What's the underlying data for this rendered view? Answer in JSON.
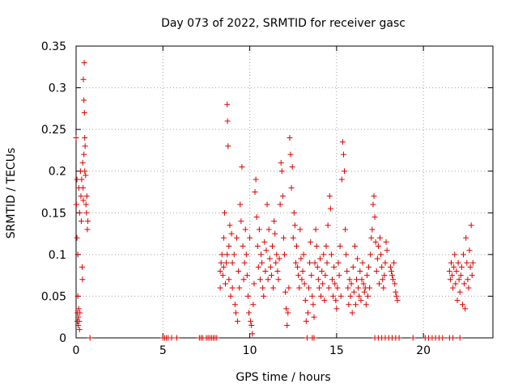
{
  "chart_data": {
    "type": "scatter",
    "title": "Day 073 of 2022, SRMTID for receiver gasc",
    "xlabel": "GPS time / hours",
    "ylabel": "SRMTID / TECUs",
    "xlim": [
      0,
      24
    ],
    "ylim": [
      0,
      0.35
    ],
    "xticks": [
      0,
      5,
      10,
      15,
      20
    ],
    "yticks": [
      0,
      0.05,
      0.1,
      0.15,
      0.2,
      0.25,
      0.3,
      0.35
    ],
    "xtick_labels": [
      "0",
      "5",
      "10",
      "15",
      "20"
    ],
    "ytick_labels": [
      "0",
      "0.05",
      "0.1",
      "0.15",
      "0.2",
      "0.25",
      "0.3",
      "0.35"
    ],
    "grid": true,
    "marker": "+",
    "color": "#dd0000",
    "series": [
      {
        "name": "SRMTID",
        "points": [
          [
            0.0,
            0.24
          ],
          [
            0.02,
            0.16
          ],
          [
            0.05,
            0.19
          ],
          [
            0.05,
            0.12
          ],
          [
            0.07,
            0.02
          ],
          [
            0.08,
            0.03
          ],
          [
            0.1,
            0.05
          ],
          [
            0.1,
            0.1
          ],
          [
            0.12,
            0.015
          ],
          [
            0.13,
            0.025
          ],
          [
            0.15,
            0.035
          ],
          [
            0.16,
            0.18
          ],
          [
            0.18,
            0.02
          ],
          [
            0.2,
            0.01
          ],
          [
            0.2,
            0.15
          ],
          [
            0.22,
            0.03
          ],
          [
            0.25,
            0.2
          ],
          [
            0.28,
            0.17
          ],
          [
            0.3,
            0.14
          ],
          [
            0.32,
            0.19
          ],
          [
            0.35,
            0.085
          ],
          [
            0.37,
            0.07
          ],
          [
            0.38,
            0.21
          ],
          [
            0.4,
            0.18
          ],
          [
            0.42,
            0.165
          ],
          [
            0.42,
            0.31
          ],
          [
            0.45,
            0.285
          ],
          [
            0.45,
            0.22
          ],
          [
            0.47,
            0.33
          ],
          [
            0.48,
            0.27
          ],
          [
            0.5,
            0.24
          ],
          [
            0.5,
            0.2
          ],
          [
            0.52,
            0.23
          ],
          [
            0.55,
            0.195
          ],
          [
            0.57,
            0.16
          ],
          [
            0.6,
            0.15
          ],
          [
            0.62,
            0.17
          ],
          [
            0.65,
            0.13
          ],
          [
            0.68,
            0.14
          ],
          [
            0.8,
            0.0
          ],
          [
            5.0,
            0.0
          ],
          [
            5.1,
            0.0
          ],
          [
            5.2,
            0.0
          ],
          [
            5.3,
            0.0
          ],
          [
            5.5,
            0.0
          ],
          [
            5.8,
            0.0
          ],
          [
            7.1,
            0.0
          ],
          [
            7.2,
            0.0
          ],
          [
            7.3,
            0.0
          ],
          [
            7.5,
            0.0
          ],
          [
            7.6,
            0.0
          ],
          [
            7.7,
            0.0
          ],
          [
            7.8,
            0.0
          ],
          [
            7.9,
            0.0
          ],
          [
            8.0,
            0.0
          ],
          [
            8.1,
            0.0
          ],
          [
            8.3,
            0.08
          ],
          [
            8.3,
            0.06
          ],
          [
            8.35,
            0.09
          ],
          [
            8.4,
            0.1
          ],
          [
            8.45,
            0.075
          ],
          [
            8.5,
            0.12
          ],
          [
            8.5,
            0.085
          ],
          [
            8.55,
            0.15
          ],
          [
            8.6,
            0.065
          ],
          [
            8.65,
            0.09
          ],
          [
            8.7,
            0.28
          ],
          [
            8.7,
            0.1
          ],
          [
            8.72,
            0.26
          ],
          [
            8.75,
            0.23
          ],
          [
            8.8,
            0.11
          ],
          [
            8.8,
            0.07
          ],
          [
            8.85,
            0.135
          ],
          [
            8.9,
            0.05
          ],
          [
            8.95,
            0.125
          ],
          [
            9.0,
            0.09
          ],
          [
            9.0,
            0.06
          ],
          [
            9.1,
            0.1
          ],
          [
            9.15,
            0.04
          ],
          [
            9.2,
            0.03
          ],
          [
            9.25,
            0.12
          ],
          [
            9.3,
            0.02
          ],
          [
            9.35,
            0.08
          ],
          [
            9.4,
            0.06
          ],
          [
            9.45,
            0.16
          ],
          [
            9.5,
            0.14
          ],
          [
            9.55,
            0.205
          ],
          [
            9.6,
            0.11
          ],
          [
            9.65,
            0.07
          ],
          [
            9.7,
            0.09
          ],
          [
            9.75,
            0.13
          ],
          [
            9.8,
            0.1
          ],
          [
            9.85,
            0.075
          ],
          [
            9.9,
            0.05
          ],
          [
            9.95,
            0.03
          ],
          [
            10.0,
            0.12
          ],
          [
            10.05,
            0.02
          ],
          [
            10.1,
            0.015
          ],
          [
            10.15,
            0.005
          ],
          [
            10.2,
            0.04
          ],
          [
            10.25,
            0.065
          ],
          [
            10.3,
            0.175
          ],
          [
            10.35,
            0.19
          ],
          [
            10.4,
            0.145
          ],
          [
            10.45,
            0.11
          ],
          [
            10.5,
            0.085
          ],
          [
            10.55,
            0.13
          ],
          [
            10.6,
            0.07
          ],
          [
            10.65,
            0.1
          ],
          [
            10.7,
            0.09
          ],
          [
            10.75,
            0.06
          ],
          [
            10.8,
            0.05
          ],
          [
            10.85,
            0.115
          ],
          [
            10.9,
            0.08
          ],
          [
            10.95,
            0.105
          ],
          [
            11.0,
            0.16
          ],
          [
            11.05,
            0.07
          ],
          [
            11.1,
            0.13
          ],
          [
            11.15,
            0.095
          ],
          [
            11.2,
            0.085
          ],
          [
            11.25,
            0.075
          ],
          [
            11.3,
            0.11
          ],
          [
            11.35,
            0.06
          ],
          [
            11.4,
            0.14
          ],
          [
            11.45,
            0.125
          ],
          [
            11.5,
            0.09
          ],
          [
            11.55,
            0.1
          ],
          [
            11.6,
            0.08
          ],
          [
            11.65,
            0.07
          ],
          [
            11.7,
            0.095
          ],
          [
            11.75,
            0.16
          ],
          [
            11.8,
            0.21
          ],
          [
            11.85,
            0.2
          ],
          [
            11.9,
            0.17
          ],
          [
            11.95,
            0.12
          ],
          [
            12.0,
            0.1
          ],
          [
            12.05,
            0.055
          ],
          [
            12.1,
            0.035
          ],
          [
            12.15,
            0.015
          ],
          [
            12.2,
            0.03
          ],
          [
            12.25,
            0.06
          ],
          [
            12.3,
            0.24
          ],
          [
            12.35,
            0.22
          ],
          [
            12.4,
            0.18
          ],
          [
            12.45,
            0.205
          ],
          [
            12.5,
            0.12
          ],
          [
            12.55,
            0.15
          ],
          [
            12.6,
            0.135
          ],
          [
            12.65,
            0.09
          ],
          [
            12.7,
            0.11
          ],
          [
            12.75,
            0.085
          ],
          [
            12.8,
            0.075
          ],
          [
            12.85,
            0.06
          ],
          [
            12.9,
            0.13
          ],
          [
            12.95,
            0.095
          ],
          [
            13.0,
            0.07
          ],
          [
            13.05,
            0.08
          ],
          [
            13.1,
            0.1
          ],
          [
            13.15,
            0.065
          ],
          [
            13.2,
            0.045
          ],
          [
            13.25,
            0.02
          ],
          [
            13.3,
            0.0
          ],
          [
            13.35,
            0.03
          ],
          [
            13.4,
            0.06
          ],
          [
            13.45,
            0.09
          ],
          [
            13.5,
            0.115
          ],
          [
            13.55,
            0.075
          ],
          [
            13.6,
            0.05
          ],
          [
            13.65,
            0.04
          ],
          [
            13.7,
            0.025
          ],
          [
            13.75,
            0.09
          ],
          [
            13.8,
            0.13
          ],
          [
            13.85,
            0.11
          ],
          [
            13.9,
            0.085
          ],
          [
            13.95,
            0.07
          ],
          [
            14.0,
            0.06
          ],
          [
            14.05,
            0.095
          ],
          [
            14.1,
            0.05
          ],
          [
            14.15,
            0.08
          ],
          [
            14.2,
            0.065
          ],
          [
            14.25,
            0.1
          ],
          [
            14.3,
            0.045
          ],
          [
            14.35,
            0.075
          ],
          [
            14.4,
            0.11
          ],
          [
            14.45,
            0.09
          ],
          [
            14.5,
            0.135
          ],
          [
            14.55,
            0.06
          ],
          [
            14.6,
            0.17
          ],
          [
            14.65,
            0.155
          ],
          [
            14.7,
            0.1
          ],
          [
            14.75,
            0.07
          ],
          [
            14.8,
            0.05
          ],
          [
            14.85,
            0.085
          ],
          [
            14.9,
            0.065
          ],
          [
            14.95,
            0.045
          ],
          [
            15.0,
            0.035
          ],
          [
            15.05,
            0.06
          ],
          [
            15.1,
            0.09
          ],
          [
            15.15,
            0.075
          ],
          [
            15.2,
            0.11
          ],
          [
            15.25,
            0.05
          ],
          [
            15.3,
            0.19
          ],
          [
            15.35,
            0.235
          ],
          [
            15.4,
            0.22
          ],
          [
            15.45,
            0.2
          ],
          [
            15.5,
            0.13
          ],
          [
            15.55,
            0.1
          ],
          [
            15.6,
            0.08
          ],
          [
            15.65,
            0.06
          ],
          [
            15.7,
            0.04
          ],
          [
            15.75,
            0.07
          ],
          [
            15.8,
            0.05
          ],
          [
            15.85,
            0.065
          ],
          [
            15.9,
            0.03
          ],
          [
            15.95,
            0.085
          ],
          [
            16.0,
            0.055
          ],
          [
            16.05,
            0.11
          ],
          [
            16.1,
            0.04
          ],
          [
            16.15,
            0.07
          ],
          [
            16.2,
            0.095
          ],
          [
            16.25,
            0.06
          ],
          [
            16.3,
            0.05
          ],
          [
            16.35,
            0.08
          ],
          [
            16.4,
            0.045
          ],
          [
            16.45,
            0.07
          ],
          [
            16.5,
            0.09
          ],
          [
            16.55,
            0.065
          ],
          [
            16.6,
            0.055
          ],
          [
            16.65,
            0.06
          ],
          [
            16.7,
            0.04
          ],
          [
            16.75,
            0.075
          ],
          [
            16.8,
            0.05
          ],
          [
            16.85,
            0.085
          ],
          [
            16.9,
            0.06
          ],
          [
            16.95,
            0.1
          ],
          [
            17.0,
            0.12
          ],
          [
            17.05,
            0.13
          ],
          [
            17.1,
            0.16
          ],
          [
            17.15,
            0.17
          ],
          [
            17.2,
            0.145
          ],
          [
            17.25,
            0.115
          ],
          [
            17.3,
            0.08
          ],
          [
            17.35,
            0.095
          ],
          [
            17.4,
            0.11
          ],
          [
            17.45,
            0.065
          ],
          [
            17.5,
            0.12
          ],
          [
            17.55,
            0.1
          ],
          [
            17.6,
            0.085
          ],
          [
            17.65,
            0.07
          ],
          [
            17.7,
            0.06
          ],
          [
            17.75,
            0.075
          ],
          [
            17.8,
            0.09
          ],
          [
            17.85,
            0.115
          ],
          [
            17.9,
            0.105
          ],
          [
            18.1,
            0.085
          ],
          [
            18.15,
            0.08
          ],
          [
            18.2,
            0.075
          ],
          [
            18.25,
            0.07
          ],
          [
            18.3,
            0.09
          ],
          [
            18.35,
            0.065
          ],
          [
            18.4,
            0.055
          ],
          [
            18.45,
            0.05
          ],
          [
            18.5,
            0.045
          ],
          [
            13.6,
            0.0
          ],
          [
            13.7,
            0.0
          ],
          [
            17.2,
            0.0
          ],
          [
            17.4,
            0.0
          ],
          [
            17.6,
            0.0
          ],
          [
            17.8,
            0.0
          ],
          [
            18.0,
            0.0
          ],
          [
            18.2,
            0.0
          ],
          [
            18.4,
            0.0
          ],
          [
            18.6,
            0.0
          ],
          [
            19.4,
            0.0
          ],
          [
            20.1,
            0.0
          ],
          [
            20.3,
            0.0
          ],
          [
            20.5,
            0.0
          ],
          [
            20.7,
            0.0
          ],
          [
            20.9,
            0.0
          ],
          [
            21.1,
            0.0
          ],
          [
            21.5,
            0.0
          ],
          [
            21.7,
            0.0
          ],
          [
            22.1,
            0.0
          ],
          [
            21.5,
            0.08
          ],
          [
            21.55,
            0.07
          ],
          [
            21.6,
            0.09
          ],
          [
            21.65,
            0.075
          ],
          [
            21.7,
            0.06
          ],
          [
            21.75,
            0.085
          ],
          [
            21.8,
            0.1
          ],
          [
            21.85,
            0.065
          ],
          [
            21.9,
            0.08
          ],
          [
            21.95,
            0.045
          ],
          [
            22.0,
            0.09
          ],
          [
            22.05,
            0.07
          ],
          [
            22.1,
            0.055
          ],
          [
            22.15,
            0.075
          ],
          [
            22.2,
            0.085
          ],
          [
            22.25,
            0.04
          ],
          [
            22.3,
            0.1
          ],
          [
            22.35,
            0.065
          ],
          [
            22.4,
            0.035
          ],
          [
            22.45,
            0.12
          ],
          [
            22.5,
            0.09
          ],
          [
            22.55,
            0.07
          ],
          [
            22.6,
            0.06
          ],
          [
            22.65,
            0.105
          ],
          [
            22.7,
            0.085
          ],
          [
            22.75,
            0.135
          ],
          [
            22.8,
            0.075
          ],
          [
            22.85,
            0.09
          ]
        ]
      }
    ]
  }
}
